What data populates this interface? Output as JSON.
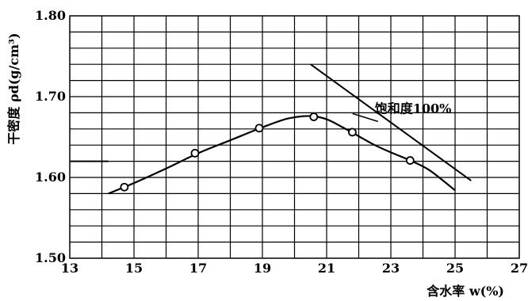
{
  "chart_data": {
    "type": "line",
    "title": "",
    "xlabel": "含水率 w(%)",
    "ylabel": "干密度 ρd(g/cm³)",
    "xlim": [
      13,
      27
    ],
    "ylim": [
      1.5,
      1.8
    ],
    "x_ticks": [
      13,
      15,
      17,
      19,
      21,
      23,
      25,
      27
    ],
    "x_tick_labels": [
      "13",
      "15",
      "17",
      "19",
      "21",
      "23",
      "25",
      "27"
    ],
    "y_ticks": [
      1.5,
      1.6,
      1.7,
      1.8
    ],
    "y_tick_labels": [
      "1.50",
      "1.60",
      "1.70",
      "1.80"
    ],
    "x_minor_step": 1,
    "y_minor_step": 0.02,
    "grid": true,
    "series": [
      {
        "values_type": "measured_points",
        "x": [
          14.7,
          16.9,
          18.9,
          20.6,
          21.8,
          23.6
        ],
        "y": [
          1.588,
          1.63,
          1.661,
          1.675,
          1.656,
          1.621
        ]
      },
      {
        "values_type": "curve",
        "x": [
          14.2,
          15.0,
          16.0,
          17.0,
          18.0,
          19.0,
          19.8,
          20.5,
          21.0,
          21.5,
          22.0,
          22.5,
          23.0,
          23.6,
          24.2,
          25.0
        ],
        "y": [
          1.58,
          1.593,
          1.611,
          1.63,
          1.646,
          1.662,
          1.673,
          1.676,
          1.672,
          1.662,
          1.651,
          1.64,
          1.631,
          1.621,
          1.609,
          1.584
        ]
      },
      {
        "name": "饱和度100%",
        "values_type": "line",
        "x": [
          20.5,
          25.5
        ],
        "y": [
          1.74,
          1.596
        ]
      }
    ],
    "reference_line": {
      "y": 1.62,
      "x": [
        13,
        14.2
      ]
    },
    "annotations": [
      {
        "text": "饱和度100%",
        "x": 22.5,
        "y": 1.68
      }
    ]
  }
}
